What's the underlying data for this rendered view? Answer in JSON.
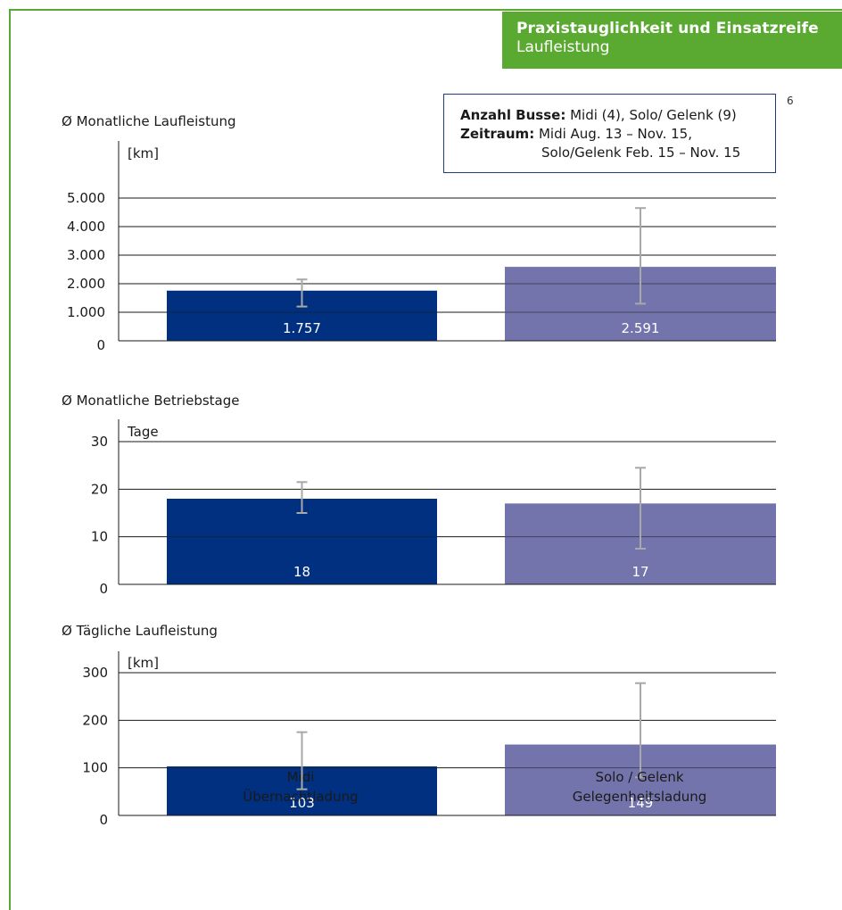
{
  "header": {
    "title": "Praxistauglichkeit und Einsatzreife",
    "subtitle": "Laufleistung"
  },
  "page_number": "6",
  "info": {
    "busse_label": "Anzahl Busse:",
    "busse_value": " Midi (4), Solo/ Gelenk (9)",
    "zeitraum_label": "Zeitraum:",
    "zeitraum_value1": " Midi Aug. 13 – Nov. 15,",
    "zeitraum_value2": "Solo/Gelenk Feb. 15 – Nov. 15"
  },
  "colors": {
    "accent": "#5aaa32",
    "midi": "#00307f",
    "solo": "#7474ac",
    "error_bar": "#a8a8a8",
    "frame": "#22397a"
  },
  "x_labels": [
    [
      "Midi",
      "Übernachtladung"
    ],
    [
      "Solo / Gelenk",
      "Gelegenheitsladung"
    ]
  ],
  "chart_data": [
    {
      "type": "bar",
      "title": "Ø Monatliche Laufleistung",
      "ylabel": "[km]",
      "categories": [
        "Midi Übernachtladung",
        "Solo / Gelenk Gelegenheitsladung"
      ],
      "values": [
        1757,
        2591
      ],
      "value_labels": [
        "1.757",
        "2.591"
      ],
      "error_low": [
        1200,
        1300
      ],
      "error_high": [
        2150,
        4650
      ],
      "yticks": [
        0,
        1000,
        2000,
        3000,
        4000,
        5000
      ],
      "ytick_labels": [
        "0",
        "1.000",
        "2.000",
        "3.000",
        "4.000",
        "5.000"
      ],
      "ylim": [
        0,
        5000
      ],
      "grid": true
    },
    {
      "type": "bar",
      "title": "Ø Monatliche Betriebstage",
      "ylabel": "Tage",
      "categories": [
        "Midi Übernachtladung",
        "Solo / Gelenk Gelegenheitsladung"
      ],
      "values": [
        18,
        17
      ],
      "value_labels": [
        "18",
        "17"
      ],
      "error_low": [
        15,
        7.5
      ],
      "error_high": [
        21.5,
        24.5
      ],
      "yticks": [
        0,
        10,
        20,
        30
      ],
      "ytick_labels": [
        "0",
        "10",
        "20",
        "30"
      ],
      "ylim": [
        0,
        30
      ],
      "grid": true
    },
    {
      "type": "bar",
      "title": "Ø Tägliche Laufleistung",
      "ylabel": "[km]",
      "categories": [
        "Midi Übernachtladung",
        "Solo / Gelenk Gelegenheitsladung"
      ],
      "values": [
        103,
        149
      ],
      "value_labels": [
        "103",
        "149"
      ],
      "error_low": [
        55,
        80
      ],
      "error_high": [
        175,
        278
      ],
      "yticks": [
        0,
        100,
        200,
        300
      ],
      "ytick_labels": [
        "0",
        "100",
        "200",
        "300"
      ],
      "ylim": [
        0,
        300
      ],
      "grid": true
    }
  ]
}
